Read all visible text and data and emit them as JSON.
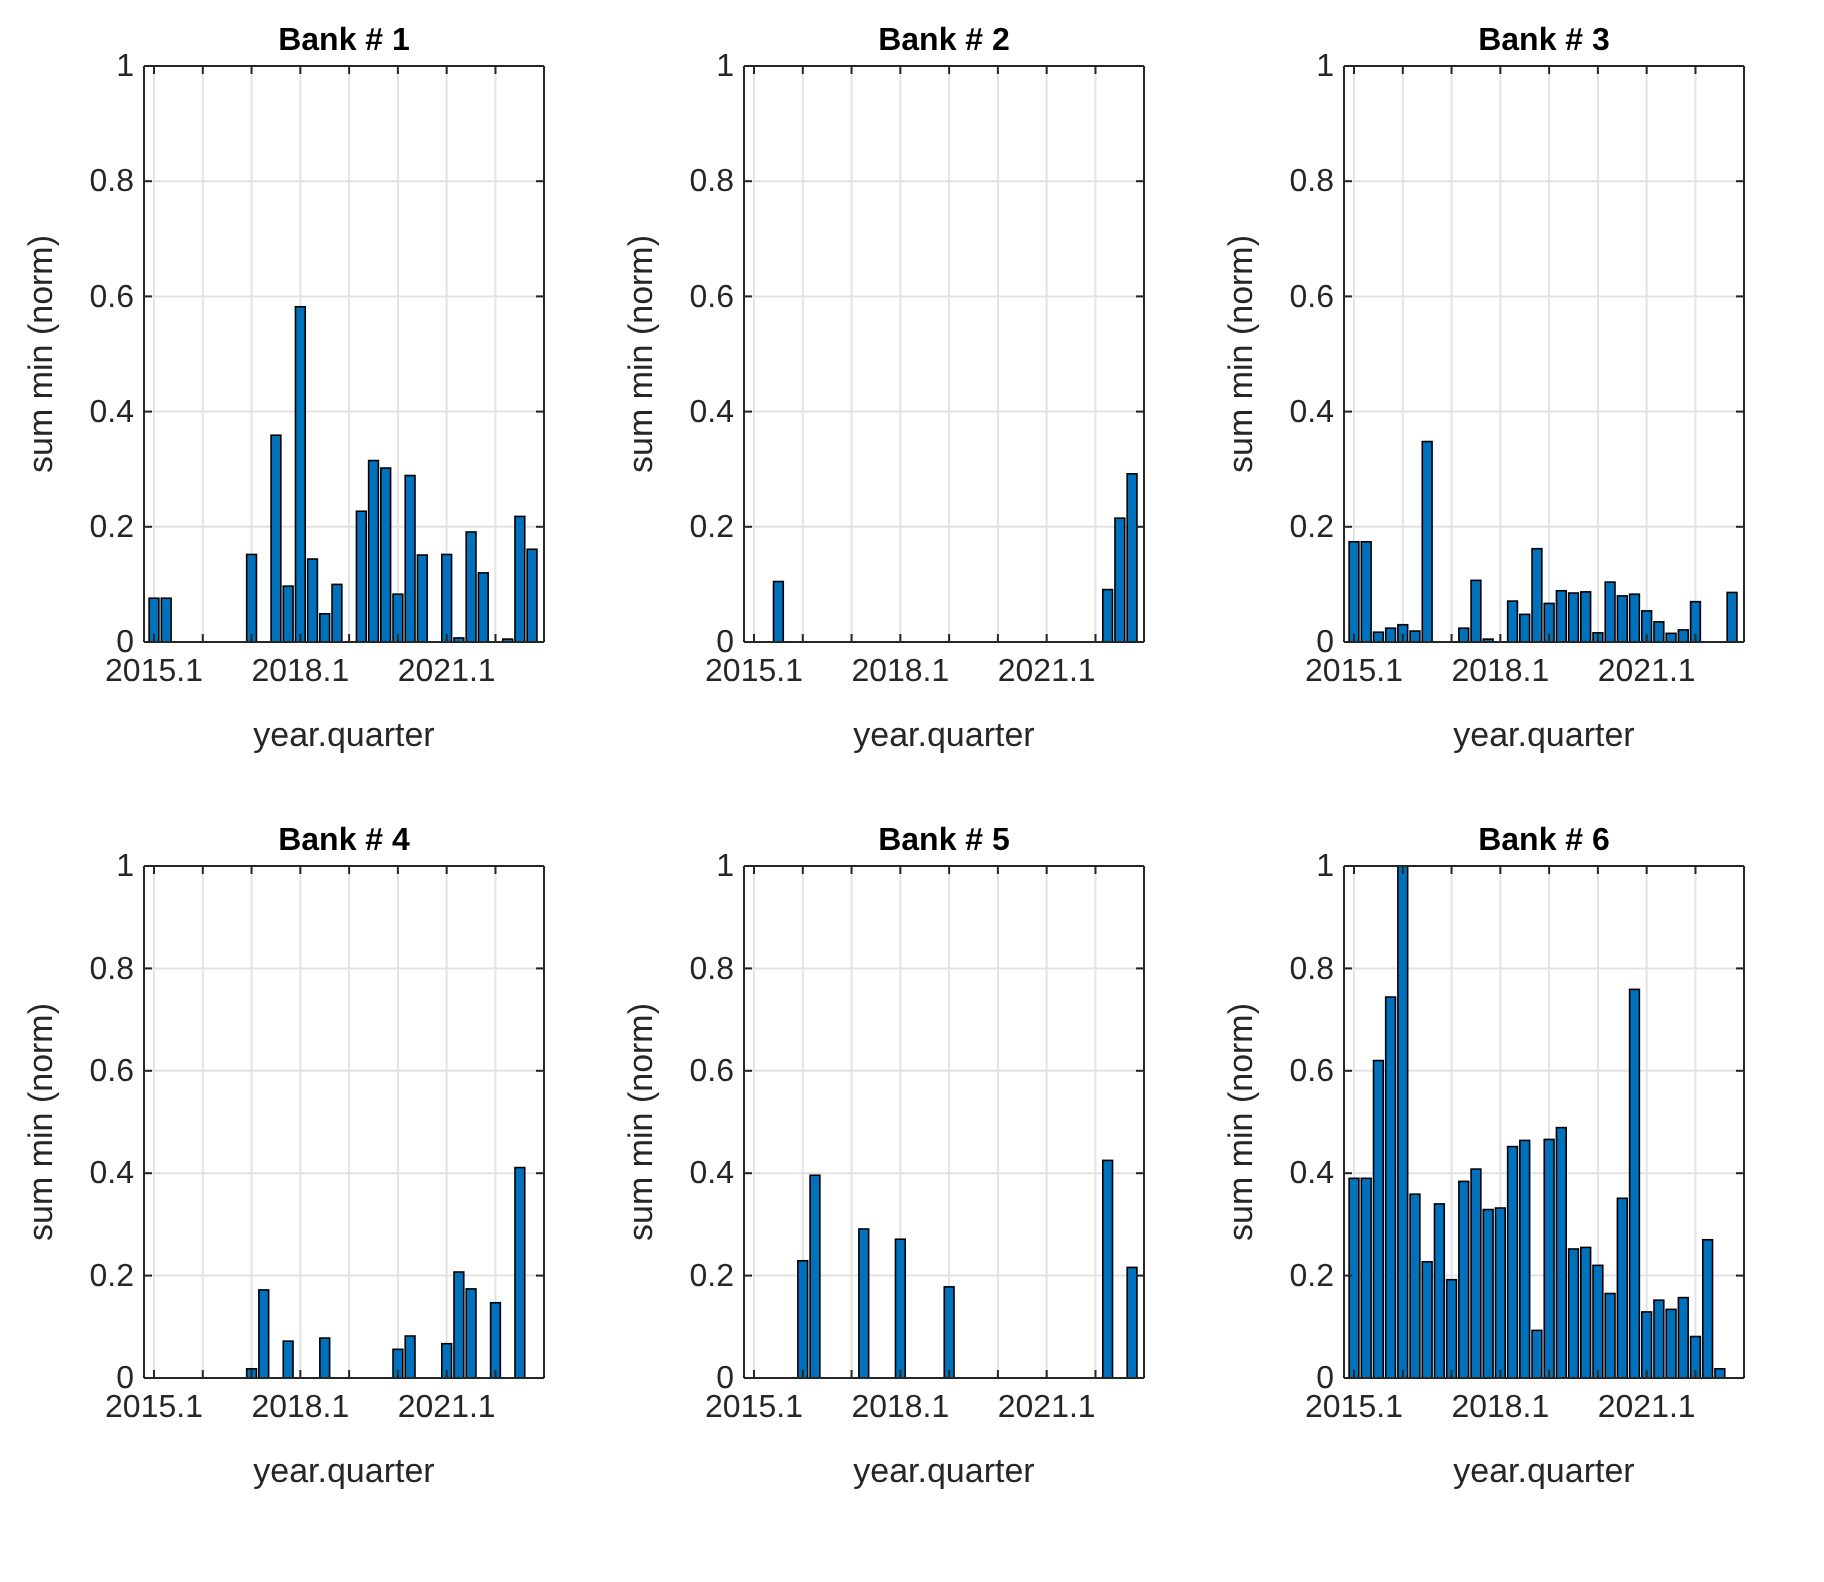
{
  "chart_data": [
    {
      "type": "bar",
      "title": "Bank # 1",
      "xlabel": "year.quarter",
      "ylabel": "sum min (norm)",
      "color": "#0072bd",
      "grid": true,
      "ylim": [
        0,
        1
      ],
      "yticks": [
        0,
        0.2,
        0.4,
        0.6,
        0.8,
        1
      ],
      "categories": [
        "2015.1",
        null,
        null,
        null,
        null,
        null,
        null,
        null,
        null,
        null,
        null,
        null,
        "2018.1",
        null,
        null,
        null,
        null,
        null,
        null,
        null,
        null,
        null,
        null,
        null,
        "2021.1",
        null,
        null,
        null,
        null,
        null,
        null,
        null
      ],
      "values": [
        0.076,
        0.076,
        0,
        0,
        0,
        0,
        0,
        0,
        0.152,
        0,
        0.359,
        0.097,
        0.582,
        0.144,
        0.049,
        0.1,
        0,
        0.227,
        0.315,
        0.302,
        0.083,
        0.289,
        0.151,
        0,
        0.152,
        0.007,
        0.191,
        0.12,
        0,
        0.005,
        0.218,
        0.161
      ]
    },
    {
      "type": "bar",
      "title": "Bank # 2",
      "xlabel": "year.quarter",
      "ylabel": "sum min (norm)",
      "color": "#0072bd",
      "grid": true,
      "ylim": [
        0,
        1
      ],
      "yticks": [
        0,
        0.2,
        0.4,
        0.6,
        0.8,
        1
      ],
      "categories": [
        "2015.1",
        null,
        null,
        null,
        null,
        null,
        null,
        null,
        null,
        null,
        null,
        null,
        "2018.1",
        null,
        null,
        null,
        null,
        null,
        null,
        null,
        null,
        null,
        null,
        null,
        "2021.1",
        null,
        null,
        null,
        null,
        null,
        null,
        null
      ],
      "values": [
        0,
        0,
        0.105,
        0,
        0,
        0,
        0,
        0,
        0,
        0,
        0,
        0,
        0,
        0,
        0,
        0,
        0,
        0,
        0,
        0,
        0,
        0,
        0,
        0,
        0,
        0,
        0,
        0,
        0,
        0.091,
        0.215,
        0.292
      ]
    },
    {
      "type": "bar",
      "title": "Bank # 3",
      "xlabel": "year.quarter",
      "ylabel": "sum min (norm)",
      "color": "#0072bd",
      "grid": true,
      "ylim": [
        0,
        1
      ],
      "yticks": [
        0,
        0.2,
        0.4,
        0.6,
        0.8,
        1
      ],
      "categories": [
        "2015.1",
        null,
        null,
        null,
        null,
        null,
        null,
        null,
        null,
        null,
        null,
        null,
        "2018.1",
        null,
        null,
        null,
        null,
        null,
        null,
        null,
        null,
        null,
        null,
        null,
        "2021.1",
        null,
        null,
        null,
        null,
        null,
        null,
        null
      ],
      "values": [
        0.174,
        0.174,
        0.017,
        0.024,
        0.03,
        0.019,
        0.348,
        0,
        0,
        0.024,
        0.107,
        0.005,
        0,
        0.071,
        0.048,
        0.162,
        0.067,
        0.089,
        0.085,
        0.087,
        0.016,
        0.104,
        0.08,
        0.083,
        0.054,
        0.035,
        0.015,
        0.021,
        0.07,
        0,
        0,
        0.086
      ]
    },
    {
      "type": "bar",
      "title": "Bank # 4",
      "xlabel": "year.quarter",
      "ylabel": "sum min (norm)",
      "color": "#0072bd",
      "grid": true,
      "ylim": [
        0,
        1
      ],
      "yticks": [
        0,
        0.2,
        0.4,
        0.6,
        0.8,
        1
      ],
      "categories": [
        "2015.1",
        null,
        null,
        null,
        null,
        null,
        null,
        null,
        null,
        null,
        null,
        null,
        "2018.1",
        null,
        null,
        null,
        null,
        null,
        null,
        null,
        null,
        null,
        null,
        null,
        "2021.1",
        null,
        null,
        null,
        null,
        null,
        null,
        null
      ],
      "values": [
        0,
        0,
        0,
        0,
        0,
        0,
        0,
        0,
        0.018,
        0.172,
        0,
        0.072,
        0,
        0,
        0.078,
        0,
        0,
        0,
        0,
        0,
        0.056,
        0.082,
        0,
        0,
        0.067,
        0.207,
        0.174,
        0,
        0.147,
        0,
        0.411,
        0
      ]
    },
    {
      "type": "bar",
      "title": "Bank # 5",
      "xlabel": "year.quarter",
      "ylabel": "sum min (norm)",
      "color": "#0072bd",
      "grid": true,
      "ylim": [
        0,
        1
      ],
      "yticks": [
        0,
        0.2,
        0.4,
        0.6,
        0.8,
        1
      ],
      "categories": [
        "2015.1",
        null,
        null,
        null,
        null,
        null,
        null,
        null,
        null,
        null,
        null,
        null,
        "2018.1",
        null,
        null,
        null,
        null,
        null,
        null,
        null,
        null,
        null,
        null,
        null,
        "2021.1",
        null,
        null,
        null,
        null,
        null,
        null,
        null
      ],
      "values": [
        0,
        0,
        0,
        0,
        0.229,
        0.396,
        0,
        0,
        0,
        0.291,
        0,
        0,
        0.271,
        0,
        0,
        0,
        0.178,
        0,
        0,
        0,
        0,
        0,
        0,
        0,
        0,
        0,
        0,
        0,
        0,
        0.425,
        0,
        0.216
      ]
    },
    {
      "type": "bar",
      "title": "Bank # 6",
      "xlabel": "year.quarter",
      "ylabel": "sum min (norm)",
      "color": "#0072bd",
      "grid": true,
      "ylim": [
        0,
        1
      ],
      "yticks": [
        0,
        0.2,
        0.4,
        0.6,
        0.8,
        1
      ],
      "categories": [
        "2015.1",
        null,
        null,
        null,
        null,
        null,
        null,
        null,
        null,
        null,
        null,
        null,
        "2018.1",
        null,
        null,
        null,
        null,
        null,
        null,
        null,
        null,
        null,
        null,
        null,
        "2021.1",
        null,
        null,
        null,
        null,
        null,
        null,
        null
      ],
      "values": [
        0.39,
        0.39,
        0.62,
        0.744,
        1,
        0.359,
        0.227,
        0.34,
        0.192,
        0.384,
        0.408,
        0.329,
        0.332,
        0.452,
        0.464,
        0.093,
        0.466,
        0.489,
        0.252,
        0.255,
        0.22,
        0.165,
        0.351,
        0.759,
        0.129,
        0.152,
        0.134,
        0.157,
        0.081,
        0.27,
        0.018,
        0
      ]
    }
  ]
}
